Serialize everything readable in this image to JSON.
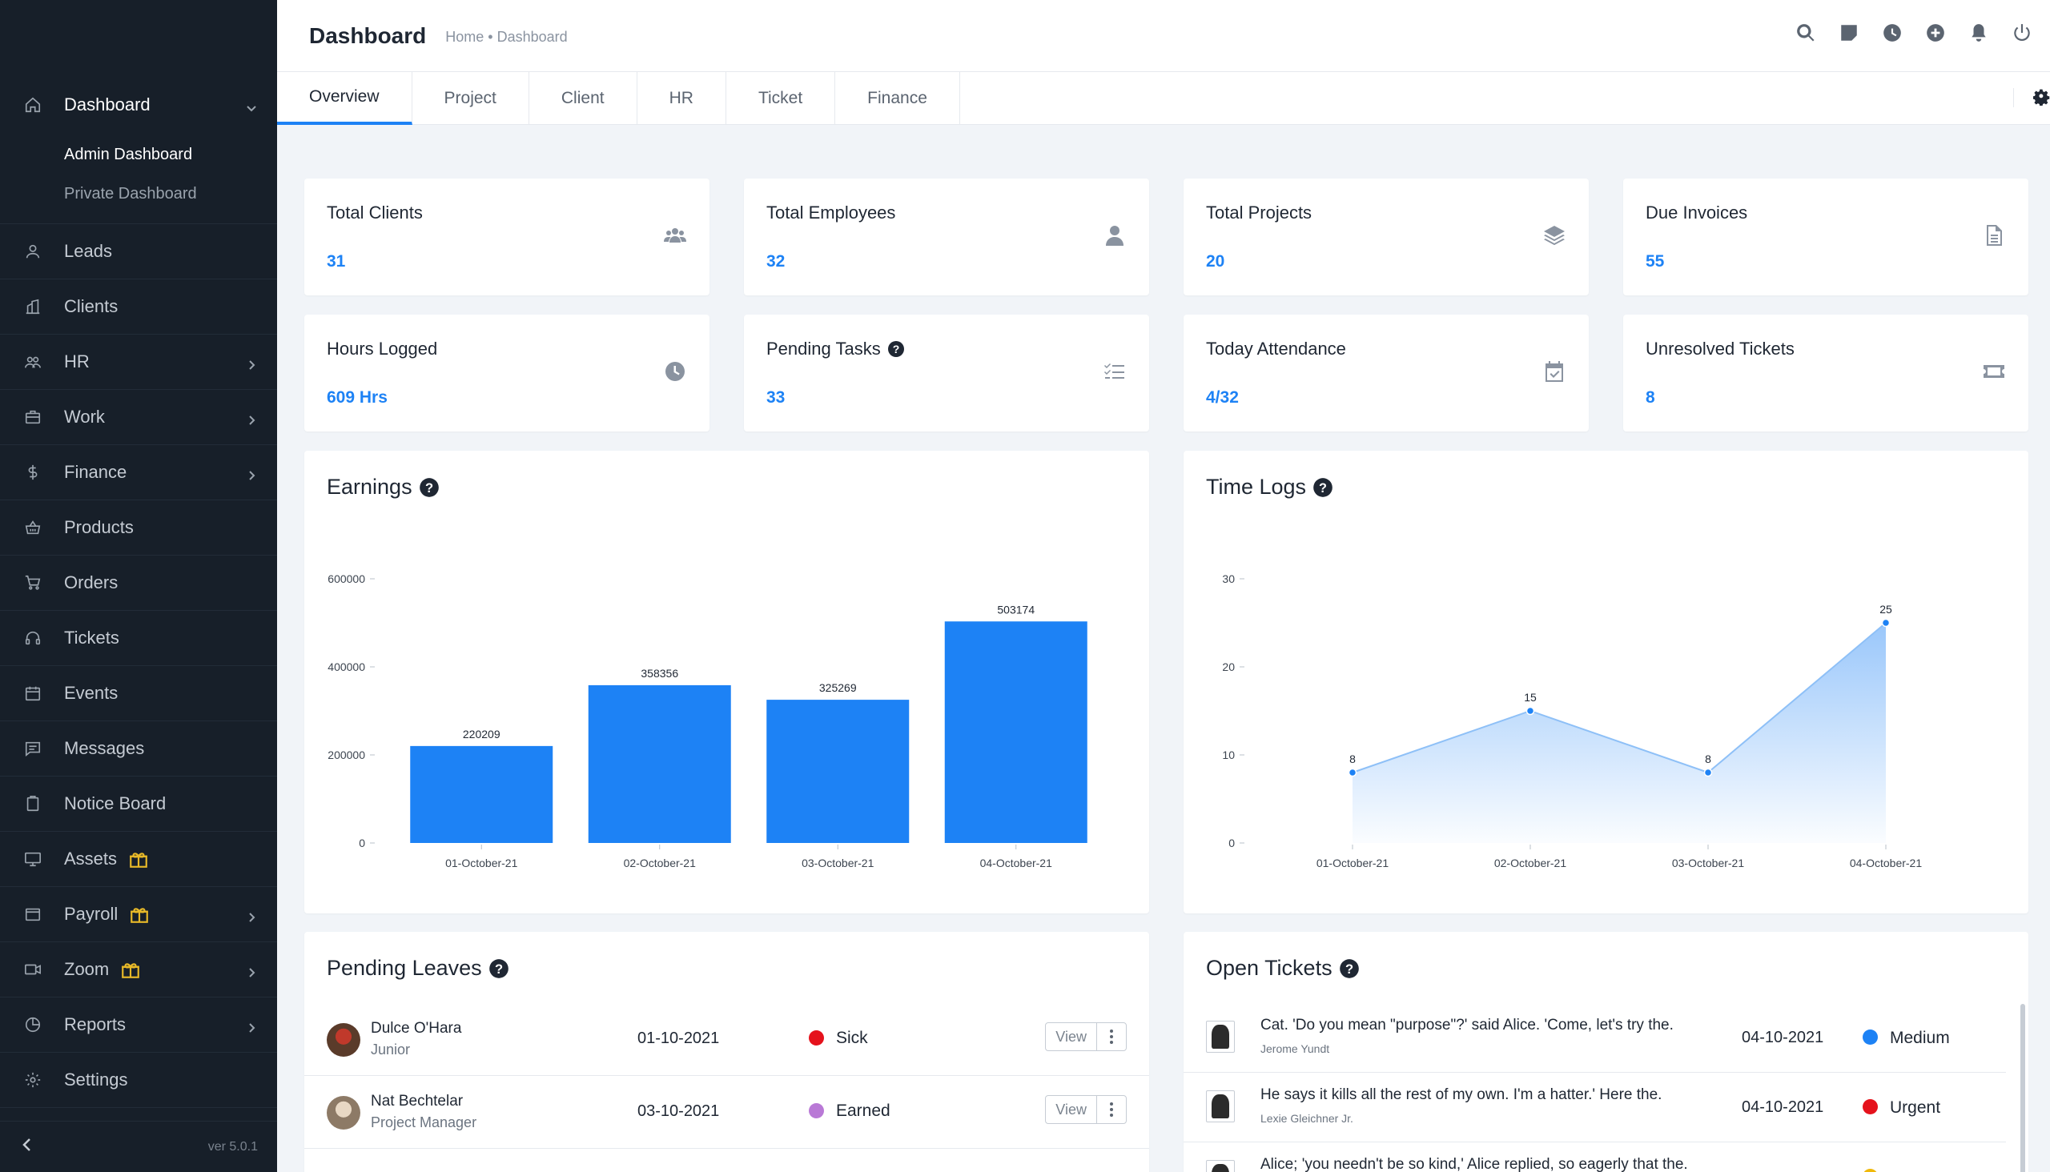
{
  "sidebar": {
    "items": [
      {
        "label": "Dashboard",
        "icon": "home-icon"
      },
      {
        "label": "Leads",
        "icon": "user-icon"
      },
      {
        "label": "Clients",
        "icon": "building-icon"
      },
      {
        "label": "HR",
        "icon": "users-icon"
      },
      {
        "label": "Work",
        "icon": "briefcase-icon"
      },
      {
        "label": "Finance",
        "icon": "dollar-icon"
      },
      {
        "label": "Products",
        "icon": "basket-icon"
      },
      {
        "label": "Orders",
        "icon": "cart-icon"
      },
      {
        "label": "Tickets",
        "icon": "headset-icon"
      },
      {
        "label": "Events",
        "icon": "calendar-icon"
      },
      {
        "label": "Messages",
        "icon": "chat-icon"
      },
      {
        "label": "Notice Board",
        "icon": "clipboard-icon"
      },
      {
        "label": "Assets",
        "icon": "monitor-icon"
      },
      {
        "label": "Payroll",
        "icon": "wallet-icon"
      },
      {
        "label": "Zoom",
        "icon": "video-icon"
      },
      {
        "label": "Reports",
        "icon": "pie-chart-icon"
      },
      {
        "label": "Settings",
        "icon": "gear-icon"
      }
    ],
    "submenu": [
      "Admin Dashboard",
      "Private Dashboard"
    ],
    "version": "ver 5.0.1"
  },
  "header": {
    "title": "Dashboard",
    "breadcrumb": "Home • Dashboard"
  },
  "tabs": [
    "Overview",
    "Project",
    "Client",
    "HR",
    "Ticket",
    "Finance"
  ],
  "stats": [
    {
      "label": "Total Clients",
      "value": "31",
      "icon": "users-icon"
    },
    {
      "label": "Total Employees",
      "value": "32",
      "icon": "user-icon"
    },
    {
      "label": "Total Projects",
      "value": "20",
      "icon": "layers-icon"
    },
    {
      "label": "Due Invoices",
      "value": "55",
      "icon": "file-icon"
    },
    {
      "label": "Hours Logged",
      "value": "609 Hrs",
      "icon": "clock-icon"
    },
    {
      "label": "Pending Tasks",
      "value": "33",
      "icon": "tasks-icon"
    },
    {
      "label": "Today Attendance",
      "value": "4/32",
      "icon": "calendar-check-icon"
    },
    {
      "label": "Unresolved Tickets",
      "value": "8",
      "icon": "ticket-icon"
    }
  ],
  "panels": {
    "earnings": "Earnings",
    "timelogs": "Time Logs",
    "leaves": "Pending Leaves",
    "tickets": "Open Tickets"
  },
  "chart_data": [
    {
      "type": "bar",
      "title": "Earnings",
      "categories": [
        "01-October-21",
        "02-October-21",
        "03-October-21",
        "04-October-21"
      ],
      "values": [
        220209,
        358356,
        325269,
        503174
      ],
      "yticks": [
        "0",
        "200000",
        "400000",
        "600000"
      ],
      "ylim": [
        0,
        600000
      ],
      "color": "#1d82f5"
    },
    {
      "type": "area",
      "title": "Time Logs",
      "categories": [
        "01-October-21",
        "02-October-21",
        "03-October-21",
        "04-October-21"
      ],
      "values": [
        8,
        15,
        8,
        25
      ],
      "yticks": [
        "0",
        "10",
        "20",
        "30"
      ],
      "ylim": [
        0,
        30
      ],
      "color": "#1d82f5"
    }
  ],
  "leaves": [
    {
      "name": "Dulce O'Hara",
      "role": "Junior",
      "date": "01-10-2021",
      "type": "Sick",
      "color": "#e5121c",
      "action": "View"
    },
    {
      "name": "Nat Bechtelar",
      "role": "Project Manager",
      "date": "03-10-2021",
      "type": "Earned",
      "color": "#b979d6",
      "action": "View"
    }
  ],
  "tickets": [
    {
      "text": "Cat. 'Do you mean \"purpose\"?' said Alice. 'Come, let's try the.",
      "author": "Jerome Yundt",
      "date": "04-10-2021",
      "priority": "Medium",
      "color": "#1d82f5"
    },
    {
      "text": "He says it kills all the rest of my own. I'm a hatter.' Here the.",
      "author": "Lexie Gleichner Jr.",
      "date": "04-10-2021",
      "priority": "Urgent",
      "color": "#e5121c"
    },
    {
      "text": "Alice; 'you needn't be so kind,' Alice replied, so eagerly that the.",
      "author": "",
      "date": "",
      "priority": "",
      "color": "#f0b90b"
    }
  ]
}
